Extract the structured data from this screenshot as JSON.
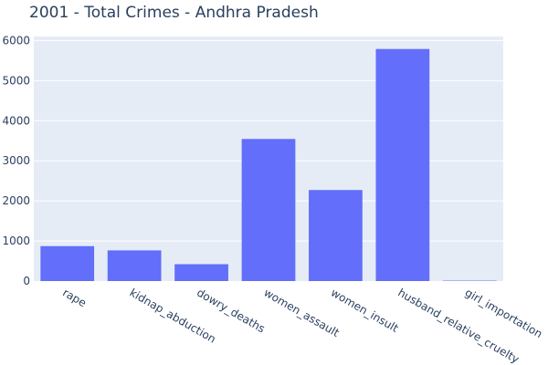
{
  "chart_data": {
    "type": "bar",
    "title": "2001 - Total Crimes - Andhra Pradesh",
    "xlabel": "",
    "ylabel": "",
    "categories": [
      "rape",
      "kidnap_abduction",
      "dowry_deaths",
      "women_assault",
      "women_insult",
      "husband_relative_cruelty",
      "girl_importation"
    ],
    "values": [
      871,
      765,
      420,
      3544,
      2271,
      5788,
      10
    ],
    "ylim": [
      0,
      6100
    ],
    "yticks": [
      0,
      1000,
      2000,
      3000,
      4000,
      5000,
      6000
    ],
    "grid": true,
    "legend": "none",
    "colors": {
      "bar": "#636efa",
      "plot_background": "#e5ecf6",
      "gridline": "#ffffff",
      "text": "#2a3f5f"
    }
  }
}
